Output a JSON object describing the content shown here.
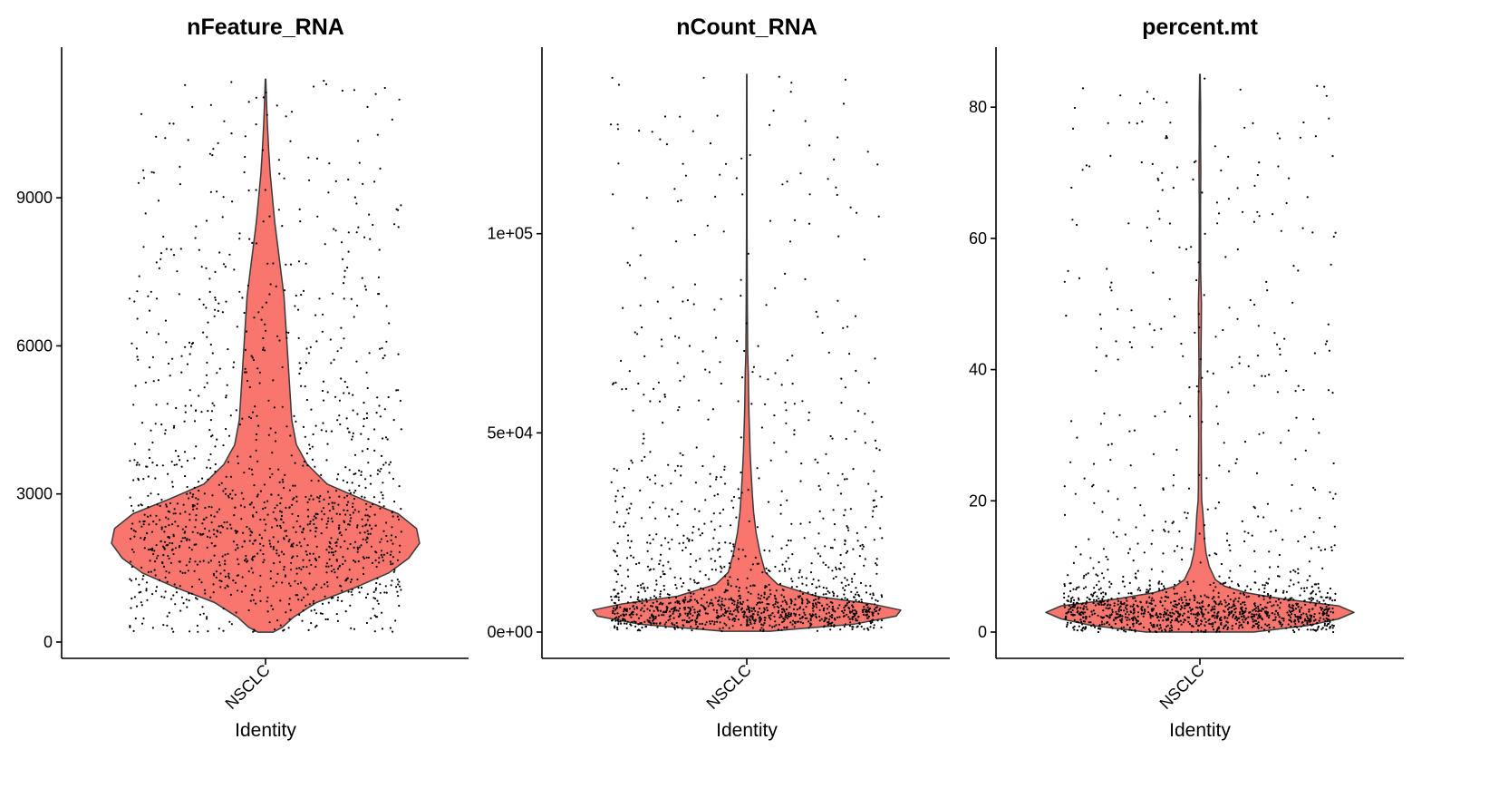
{
  "chart_data": [
    {
      "type": "violin",
      "title": "nFeature_RNA",
      "xlabel": "Identity",
      "ylabel": "",
      "categories": [
        "NSCLC"
      ],
      "ylim": [
        0,
        11500
      ],
      "yticks": [
        0,
        3000,
        6000,
        9000
      ],
      "ytick_labels": [
        "0",
        "3000",
        "6000",
        "9000"
      ],
      "fill": "#F8766D",
      "summary": {
        "min": 200,
        "mode": 2100,
        "max": 11400,
        "points_shown": 1400
      },
      "violin_profile": [
        [
          200,
          0.05
        ],
        [
          300,
          0.11
        ],
        [
          500,
          0.18
        ],
        [
          800,
          0.33
        ],
        [
          1100,
          0.58
        ],
        [
          1400,
          0.8
        ],
        [
          1700,
          0.93
        ],
        [
          2000,
          1.0
        ],
        [
          2300,
          0.98
        ],
        [
          2600,
          0.86
        ],
        [
          2900,
          0.62
        ],
        [
          3200,
          0.4
        ],
        [
          3600,
          0.27
        ],
        [
          4000,
          0.2
        ],
        [
          4500,
          0.17
        ],
        [
          5000,
          0.16
        ],
        [
          5500,
          0.15
        ],
        [
          6000,
          0.14
        ],
        [
          6500,
          0.13
        ],
        [
          7000,
          0.12
        ],
        [
          7500,
          0.1
        ],
        [
          8000,
          0.08
        ],
        [
          8500,
          0.06
        ],
        [
          9000,
          0.045
        ],
        [
          9500,
          0.03
        ],
        [
          10000,
          0.02
        ],
        [
          10500,
          0.012
        ],
        [
          11000,
          0.006
        ],
        [
          11400,
          0.002
        ]
      ]
    },
    {
      "type": "violin",
      "title": "nCount_RNA",
      "xlabel": "Identity",
      "ylabel": "",
      "categories": [
        "NSCLC"
      ],
      "ylim": [
        0,
        140000
      ],
      "yticks": [
        0,
        50000,
        100000
      ],
      "ytick_labels": [
        "0e+00",
        "5e+04",
        "1e+05"
      ],
      "fill": "#F8766D",
      "summary": {
        "min": 200,
        "mode": 5000,
        "max": 140000,
        "points_shown": 1400
      },
      "violin_profile": [
        [
          200,
          0.15
        ],
        [
          2000,
          0.7
        ],
        [
          4000,
          0.97
        ],
        [
          5500,
          1.0
        ],
        [
          7000,
          0.82
        ],
        [
          9000,
          0.45
        ],
        [
          12000,
          0.2
        ],
        [
          15000,
          0.12
        ],
        [
          20000,
          0.085
        ],
        [
          25000,
          0.06
        ],
        [
          30000,
          0.045
        ],
        [
          35000,
          0.035
        ],
        [
          40000,
          0.028
        ],
        [
          45000,
          0.022
        ],
        [
          50000,
          0.018
        ],
        [
          55000,
          0.014
        ],
        [
          60000,
          0.012
        ],
        [
          65000,
          0.01
        ],
        [
          70000,
          0.006
        ],
        [
          80000,
          0.004
        ],
        [
          90000,
          0.003
        ],
        [
          100000,
          0.002
        ],
        [
          120000,
          0.0015
        ],
        [
          140000,
          0.001
        ]
      ]
    },
    {
      "type": "violin",
      "title": "percent.mt",
      "xlabel": "Identity",
      "ylabel": "",
      "categories": [
        "NSCLC"
      ],
      "ylim": [
        0,
        85
      ],
      "yticks": [
        0,
        20,
        40,
        60,
        80
      ],
      "ytick_labels": [
        "0",
        "20",
        "40",
        "60",
        "80"
      ],
      "fill": "#F8766D",
      "summary": {
        "min": 0,
        "mode": 3.5,
        "max": 85,
        "points_shown": 1400
      },
      "violin_profile": [
        [
          0,
          0.35
        ],
        [
          1,
          0.7
        ],
        [
          2,
          0.9
        ],
        [
          3,
          1.0
        ],
        [
          4,
          0.9
        ],
        [
          5,
          0.55
        ],
        [
          6,
          0.3
        ],
        [
          7,
          0.16
        ],
        [
          8,
          0.1
        ],
        [
          10,
          0.06
        ],
        [
          12,
          0.04
        ],
        [
          14,
          0.03
        ],
        [
          16,
          0.025
        ],
        [
          18,
          0.02
        ],
        [
          20,
          0.012
        ],
        [
          22,
          0.01
        ],
        [
          25,
          0.01
        ],
        [
          30,
          0.008
        ],
        [
          35,
          0.01
        ],
        [
          40,
          0.006
        ],
        [
          45,
          0.008
        ],
        [
          50,
          0.01
        ],
        [
          55,
          0.005
        ],
        [
          60,
          0.005
        ],
        [
          65,
          0.004
        ],
        [
          70,
          0.006
        ],
        [
          75,
          0.004
        ],
        [
          80,
          0.005
        ],
        [
          85,
          0.002
        ]
      ]
    }
  ]
}
